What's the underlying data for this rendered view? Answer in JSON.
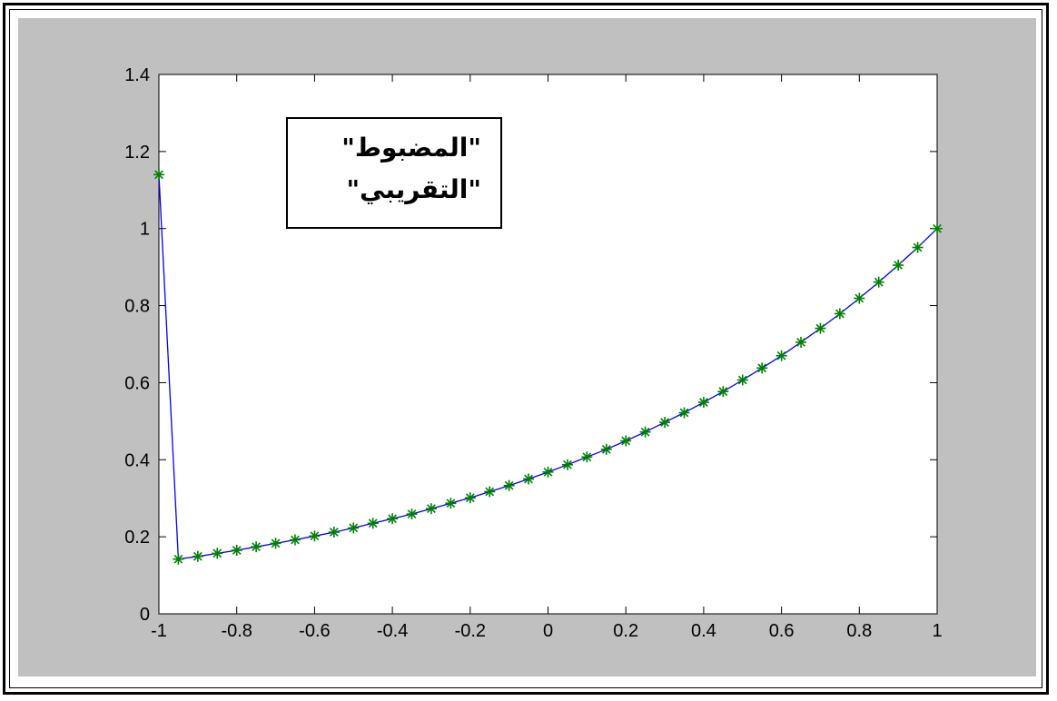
{
  "chart_data": {
    "type": "line",
    "title": "",
    "xlabel": "",
    "ylabel": "",
    "xlim": [
      -1,
      1
    ],
    "ylim": [
      0,
      1.4
    ],
    "xticks": [
      "-1",
      "-0.8",
      "-0.6",
      "-0.4",
      "-0.2",
      "0",
      "0.2",
      "0.4",
      "0.6",
      "0.8",
      "1"
    ],
    "yticks": [
      "0",
      "0.2",
      "0.4",
      "0.6",
      "0.8",
      "1",
      "1.2",
      "1.4"
    ],
    "grid": false,
    "legend": {
      "placement": "top-left",
      "lines": [
        "\"المضبوط\"",
        "\"التقريبي\""
      ]
    },
    "series": [
      {
        "style": "line",
        "color": "#0000ff",
        "x": [
          -1,
          -0.95,
          -0.9,
          -0.85,
          -0.8,
          -0.75,
          -0.7,
          -0.65,
          -0.6,
          -0.55,
          -0.5,
          -0.45,
          -0.4,
          -0.35,
          -0.3,
          -0.25,
          -0.2,
          -0.15,
          -0.1,
          -0.05,
          0,
          0.05,
          0.1,
          0.15,
          0.2,
          0.25,
          0.3,
          0.35,
          0.4,
          0.45,
          0.5,
          0.55,
          0.6,
          0.65,
          0.7,
          0.75,
          0.8,
          0.85,
          0.9,
          0.95,
          1
        ],
        "y": [
          1.14,
          0.142,
          0.149,
          0.157,
          0.165,
          0.174,
          0.183,
          0.192,
          0.202,
          0.212,
          0.223,
          0.235,
          0.247,
          0.259,
          0.273,
          0.287,
          0.301,
          0.317,
          0.333,
          0.35,
          0.368,
          0.387,
          0.407,
          0.427,
          0.449,
          0.472,
          0.497,
          0.522,
          0.549,
          0.577,
          0.607,
          0.638,
          0.67,
          0.705,
          0.741,
          0.779,
          0.819,
          0.861,
          0.905,
          0.951,
          1.0
        ]
      },
      {
        "style": "markers",
        "marker": "*",
        "color": "#008000",
        "x": [
          -1,
          -0.95,
          -0.9,
          -0.85,
          -0.8,
          -0.75,
          -0.7,
          -0.65,
          -0.6,
          -0.55,
          -0.5,
          -0.45,
          -0.4,
          -0.35,
          -0.3,
          -0.25,
          -0.2,
          -0.15,
          -0.1,
          -0.05,
          0,
          0.05,
          0.1,
          0.15,
          0.2,
          0.25,
          0.3,
          0.35,
          0.4,
          0.45,
          0.5,
          0.55,
          0.6,
          0.65,
          0.7,
          0.75,
          0.8,
          0.85,
          0.9,
          0.95,
          1
        ],
        "y": [
          1.14,
          0.142,
          0.149,
          0.157,
          0.165,
          0.174,
          0.183,
          0.192,
          0.202,
          0.212,
          0.223,
          0.235,
          0.247,
          0.259,
          0.273,
          0.287,
          0.301,
          0.317,
          0.333,
          0.35,
          0.368,
          0.387,
          0.407,
          0.427,
          0.449,
          0.472,
          0.497,
          0.522,
          0.549,
          0.577,
          0.607,
          0.638,
          0.67,
          0.705,
          0.741,
          0.779,
          0.819,
          0.861,
          0.905,
          0.951,
          1.0
        ]
      }
    ]
  }
}
